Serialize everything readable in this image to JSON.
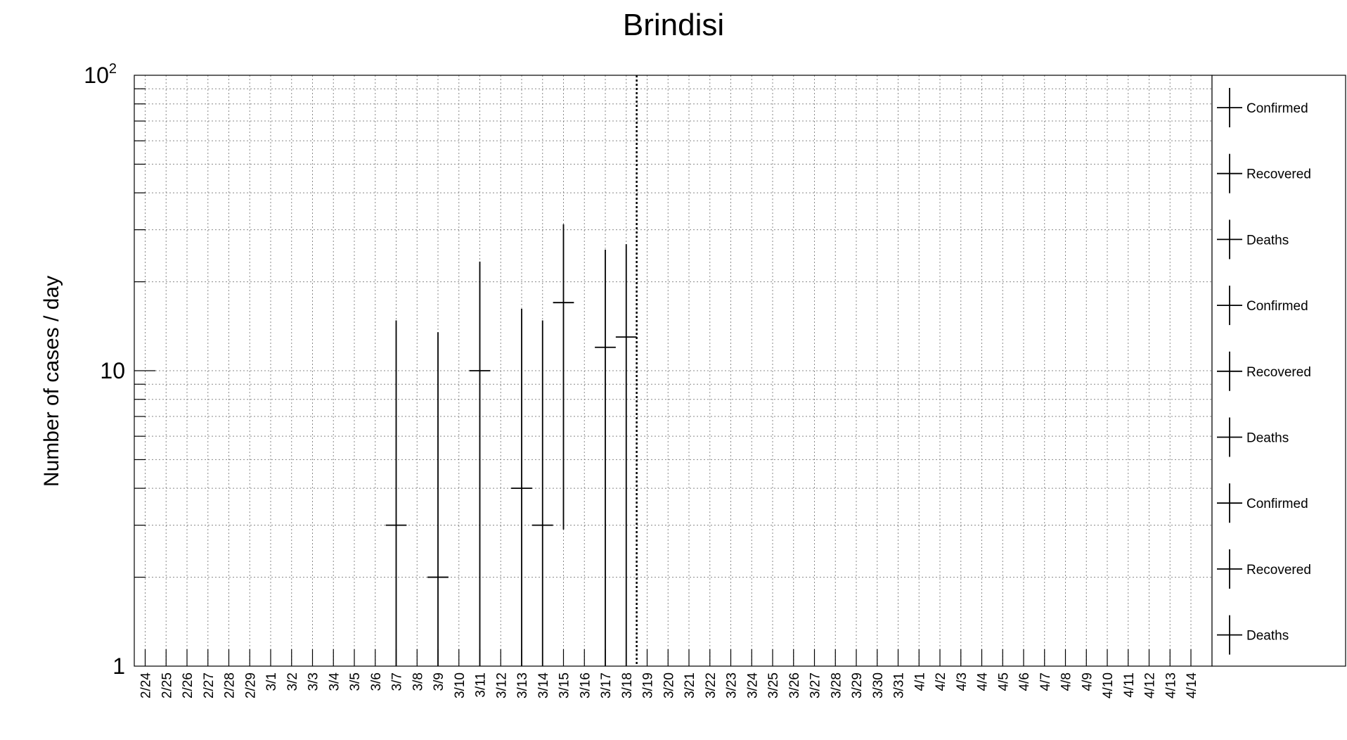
{
  "chart_data": {
    "type": "scatter",
    "title": "Brindisi",
    "xlabel": "",
    "ylabel": "Number of cases / day",
    "yscale": "log",
    "ylim": [
      1,
      100
    ],
    "yticks": [
      {
        "value": 1,
        "base": "1",
        "exp": ""
      },
      {
        "value": 10,
        "base": "10",
        "exp": ""
      },
      {
        "value": 100,
        "base": "10",
        "exp": "2"
      }
    ],
    "grid": true,
    "categories": [
      "2/24",
      "2/25",
      "2/26",
      "2/27",
      "2/28",
      "2/29",
      "3/1",
      "3/2",
      "3/3",
      "3/4",
      "3/5",
      "3/6",
      "3/7",
      "3/8",
      "3/9",
      "3/10",
      "3/11",
      "3/12",
      "3/13",
      "3/14",
      "3/15",
      "3/16",
      "3/17",
      "3/18",
      "3/19",
      "3/20",
      "3/21",
      "3/22",
      "3/23",
      "3/24",
      "3/25",
      "3/26",
      "3/27",
      "3/28",
      "3/29",
      "3/30",
      "3/31",
      "4/1",
      "4/2",
      "4/3",
      "4/4",
      "4/5",
      "4/6",
      "4/7",
      "4/8",
      "4/9",
      "4/10",
      "4/11",
      "4/12",
      "4/13",
      "4/14"
    ],
    "vertical_line": {
      "after_category": "3/18",
      "style": "dotted"
    },
    "series": [
      {
        "name": "Confirmed",
        "points": [
          {
            "x": "3/7",
            "y": 3,
            "ylow": 1,
            "yhigh": 14.8
          },
          {
            "x": "3/9",
            "y": 2,
            "ylow": 1,
            "yhigh": 13.5
          },
          {
            "x": "3/11",
            "y": 10,
            "ylow": 1,
            "yhigh": 23.4
          },
          {
            "x": "3/13",
            "y": 4,
            "ylow": 1,
            "yhigh": 16.2
          },
          {
            "x": "3/14",
            "y": 3,
            "ylow": 1,
            "yhigh": 14.8
          },
          {
            "x": "3/15",
            "y": 17,
            "ylow": 2.9,
            "yhigh": 31.3
          },
          {
            "x": "3/17",
            "y": 12,
            "ylow": 1,
            "yhigh": 25.7
          },
          {
            "x": "3/18",
            "y": 13,
            "ylow": 1,
            "yhigh": 26.8
          }
        ]
      }
    ],
    "legend": {
      "placement": "right",
      "entries": [
        "Confirmed",
        "Recovered",
        "Deaths",
        "Confirmed",
        "Recovered",
        "Deaths",
        "Confirmed",
        "Recovered",
        "Deaths"
      ]
    }
  }
}
